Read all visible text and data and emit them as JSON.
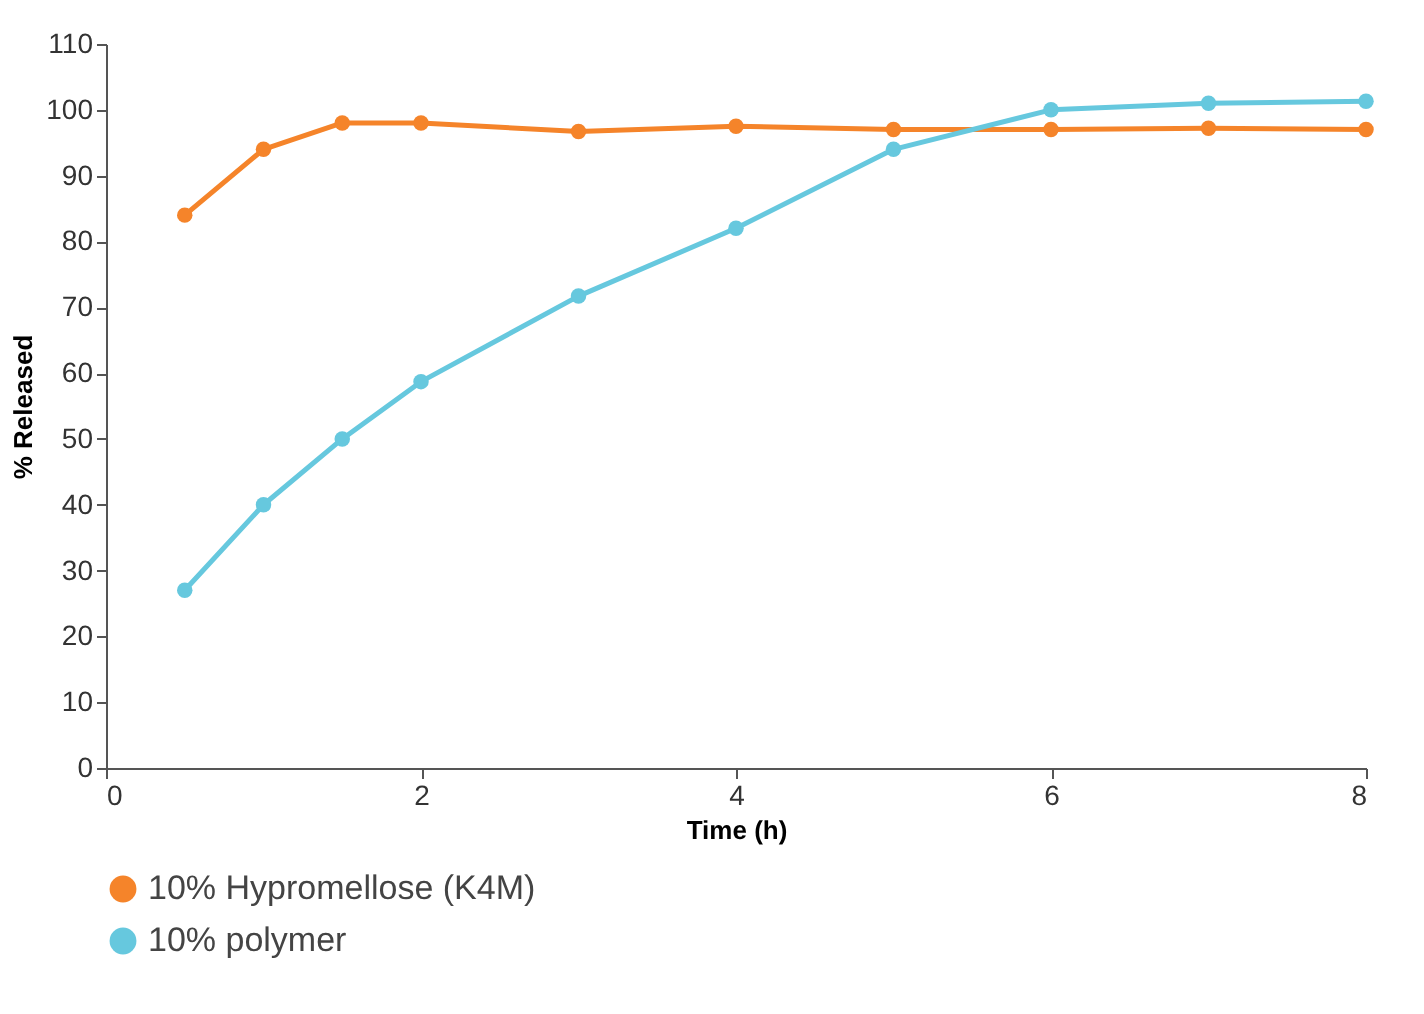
{
  "chart_data": {
    "type": "line",
    "xlabel": "Time (h)",
    "ylabel": "% Released",
    "x": [
      0.5,
      1,
      1.5,
      2,
      3,
      4,
      5,
      6,
      7,
      8
    ],
    "series": [
      {
        "name": "10% Hypromellose (K4M)",
        "color": "#f5842a",
        "values": [
          84,
          94,
          98,
          98,
          96.7,
          97.5,
          97,
          97,
          97.2,
          97
        ]
      },
      {
        "name": "10% polymer",
        "color": "#66c8de",
        "values": [
          27,
          40,
          50,
          58.7,
          71.7,
          82,
          94,
          100,
          101,
          101.3
        ]
      }
    ],
    "xlim": [
      0,
      8
    ],
    "xticks": [
      0,
      2,
      4,
      6,
      8
    ],
    "ylim": [
      0,
      110
    ],
    "yticks": [
      0,
      10,
      20,
      30,
      40,
      50,
      60,
      70,
      80,
      90,
      100,
      110
    ],
    "grid": false,
    "legend": "bottom left",
    "marker": "circle",
    "line_style": "solid"
  }
}
